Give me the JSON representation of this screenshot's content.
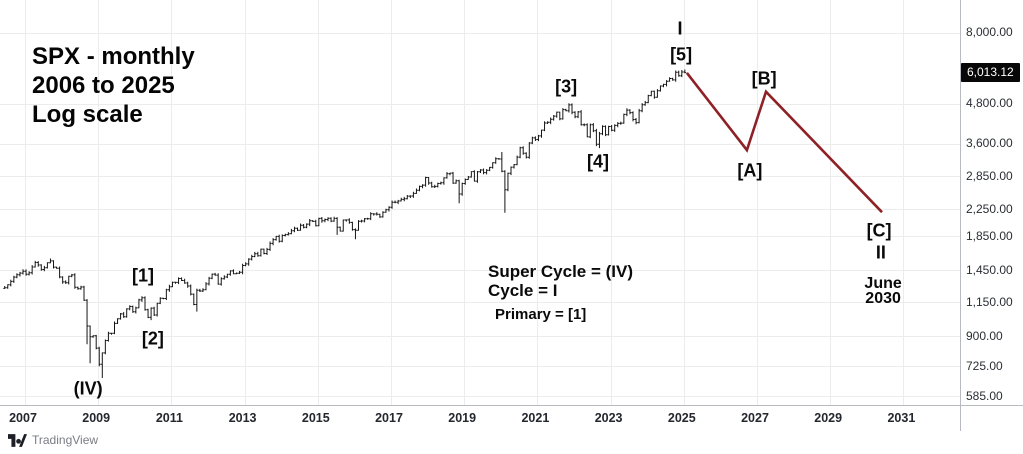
{
  "title": {
    "line1": "SPX - monthly",
    "line2": "2006 to 2025",
    "line3": "Log scale"
  },
  "notes": {
    "super_cycle": "Super Cycle = (IV)",
    "cycle": "Cycle = I",
    "primary": "Primary = [1]"
  },
  "footer": {
    "brand": "TradingView"
  },
  "price_axis": {
    "last_price": "6,013.12",
    "labels": [
      {
        "value": 8000,
        "text": "8,000.00"
      },
      {
        "value": 4800,
        "text": "4,800.00"
      },
      {
        "value": 3600,
        "text": "3,600.00"
      },
      {
        "value": 2850,
        "text": "2,850.00"
      },
      {
        "value": 2250,
        "text": "2,250.00"
      },
      {
        "value": 1850,
        "text": "1,850.00"
      },
      {
        "value": 1450,
        "text": "1,450.00"
      },
      {
        "value": 1150,
        "text": "1,150.00"
      },
      {
        "value": 900,
        "text": "900.00"
      },
      {
        "value": 725,
        "text": "725.00"
      },
      {
        "value": 585,
        "text": "585.00"
      }
    ]
  },
  "time_axis": {
    "years": [
      2007,
      2009,
      2011,
      2013,
      2015,
      2017,
      2019,
      2021,
      2023,
      2025,
      2027,
      2029,
      2031
    ]
  },
  "colors": {
    "bar": "#161616",
    "projection": "#8e2126",
    "grid": "#ececec",
    "axis_line": "#b7babf",
    "badge_bg": "#070707",
    "badge_text": "#ffffff",
    "brand_text": "#7a7d85"
  },
  "chart_data": {
    "type": "ohlc-bar",
    "symbol": "SPX",
    "timeframe": "monthly",
    "scale": "log",
    "title": "SPX - monthly 2006 to 2025 Log scale",
    "ylim": [
      585,
      8000
    ],
    "xlim_years": [
      2006.5,
      2031.6
    ],
    "grid_prices": [
      8000,
      4800,
      3600,
      2850,
      2250,
      1850,
      1450,
      1150,
      900,
      725,
      585
    ],
    "grid_year_step": 2,
    "first_year": 2006,
    "first_year_starts_month": 7,
    "monthly_close": {
      "2006": [
        1277,
        1304,
        1336,
        1378,
        1401,
        1418
      ],
      "2007": [
        1438,
        1407,
        1421,
        1482,
        1531,
        1503,
        1455,
        1474,
        1527,
        1549,
        1481,
        1468
      ],
      "2008": [
        1379,
        1331,
        1323,
        1386,
        1400,
        1280,
        1267,
        1283,
        1166,
        969,
        896,
        903
      ],
      "2009": [
        826,
        735,
        798,
        873,
        919,
        919,
        987,
        1021,
        1057,
        1036,
        1096,
        1115
      ],
      "2010": [
        1074,
        1104,
        1169,
        1187,
        1089,
        1031,
        1102,
        1049,
        1141,
        1183,
        1181,
        1258
      ],
      "2011": [
        1286,
        1327,
        1326,
        1364,
        1345,
        1321,
        1292,
        1219,
        1131,
        1253,
        1247,
        1258
      ],
      "2012": [
        1312,
        1366,
        1408,
        1398,
        1310,
        1362,
        1379,
        1407,
        1441,
        1412,
        1416,
        1426
      ],
      "2013": [
        1498,
        1515,
        1569,
        1598,
        1631,
        1606,
        1686,
        1633,
        1682,
        1757,
        1806,
        1848
      ],
      "2014": [
        1783,
        1859,
        1872,
        1884,
        1924,
        1960,
        1931,
        2003,
        1972,
        2018,
        2068,
        2059
      ],
      "2015": [
        1995,
        2104,
        2068,
        2086,
        2107,
        2063,
        2104,
        1972,
        1920,
        2079,
        2080,
        2044
      ],
      "2016": [
        1940,
        1932,
        2060,
        2065,
        2097,
        2099,
        2174,
        2171,
        2168,
        2126,
        2199,
        2239
      ],
      "2017": [
        2279,
        2364,
        2363,
        2384,
        2412,
        2423,
        2470,
        2472,
        2519,
        2575,
        2648,
        2674
      ],
      "2018": [
        2824,
        2714,
        2641,
        2648,
        2705,
        2718,
        2816,
        2902,
        2914,
        2712,
        2760,
        2507
      ],
      "2019": [
        2704,
        2784,
        2834,
        2946,
        2752,
        2942,
        2980,
        2926,
        2977,
        3038,
        3141,
        3231
      ],
      "2020": [
        3226,
        2954,
        2585,
        2912,
        3044,
        3100,
        3271,
        3500,
        3363,
        3270,
        3622,
        3756
      ],
      "2021": [
        3714,
        3811,
        3973,
        4181,
        4204,
        4298,
        4395,
        4523,
        4308,
        4605,
        4567,
        4766
      ],
      "2022": [
        4516,
        4374,
        4530,
        4132,
        4132,
        3785,
        4130,
        3955,
        3586,
        3872,
        4080,
        3840
      ],
      "2023": [
        4077,
        3970,
        4109,
        4169,
        4180,
        4450,
        4589,
        4508,
        4288,
        4194,
        4568,
        4770
      ],
      "2024": [
        4846,
        5096,
        5254,
        5036,
        5278,
        5460,
        5522,
        5648,
        5762,
        5705,
        6032,
        5882
      ],
      "2025": [
        6041,
        6013
      ]
    },
    "high_overrides": {
      "2007-10": 1576,
      "2020-02": 3393,
      "2022-01": 4818,
      "2024-12": 6100,
      "2025-01": 6128,
      "2025-02": 6147
    },
    "low_overrides": {
      "2008-10": 849,
      "2008-11": 741,
      "2009-03": 666,
      "2010-07": 1011,
      "2011-10": 1075,
      "2015-08": 1867,
      "2016-02": 1810,
      "2018-12": 2347,
      "2020-03": 2192,
      "2022-10": 3491
    },
    "projection": {
      "color": "#8e2126",
      "points": [
        {
          "year": 2025.14,
          "price": 6000
        },
        {
          "year": 2026.78,
          "price": 3440,
          "label": "[A]"
        },
        {
          "year": 2027.3,
          "price": 5240,
          "label": "[B]"
        },
        {
          "year": 2030.47,
          "price": 2200,
          "label": "[C]"
        }
      ]
    },
    "wave_labels": [
      {
        "text": "(IV)",
        "year": 2008.78,
        "price": 615
      },
      {
        "text": "[1]",
        "year": 2010.28,
        "price": 1390
      },
      {
        "text": "[2]",
        "year": 2010.55,
        "price": 883
      },
      {
        "text": "[3]",
        "year": 2021.84,
        "price": 5420
      },
      {
        "text": "[4]",
        "year": 2022.71,
        "price": 3160
      },
      {
        "text": "[5]",
        "year": 2024.98,
        "price": 6820
      },
      {
        "text": "I",
        "year": 2024.95,
        "price": 8240
      },
      {
        "text": "[A]",
        "year": 2026.86,
        "price": 2960
      },
      {
        "text": "[B]",
        "year": 2027.25,
        "price": 5740
      },
      {
        "text": "[C]",
        "year": 2030.39,
        "price": 1920
      },
      {
        "text": "II",
        "year": 2030.44,
        "price": 1640
      },
      {
        "text": "June",
        "year": 2030.5,
        "price": 1310,
        "kind": "date"
      },
      {
        "text": "2030",
        "year": 2030.5,
        "price": 1175,
        "kind": "date"
      }
    ],
    "layout": {
      "x_2007": 23,
      "x_per_year": 36.6,
      "log_a": 1280.4,
      "log_b": 319.6,
      "axis_x": 960.5,
      "axis_y": 405.5
    }
  }
}
